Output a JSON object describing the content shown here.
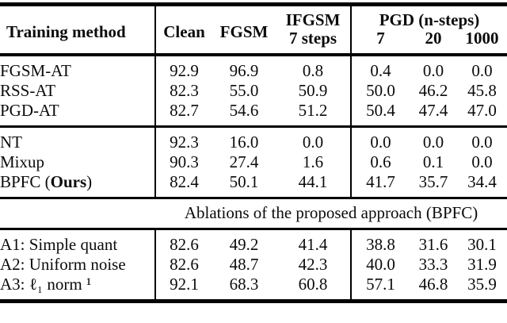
{
  "page": {
    "background_color": "#ffffff",
    "text_color": "#0b0b0b",
    "rule_color": "#000000"
  },
  "table": {
    "header": {
      "training_method": "Training method",
      "clean": "Clean",
      "fgsm": "FGSM",
      "ifgsm_line1": "IFGSM",
      "ifgsm_line2": "7 steps",
      "pgd_group": "PGD (n-steps)",
      "pgd_steps": [
        "7",
        "20",
        "1000"
      ]
    },
    "columns_order": [
      "Clean",
      "FGSM",
      "IFGSM 7 steps",
      "PGD 7",
      "PGD 20",
      "PGD 1000"
    ],
    "sections": [
      {
        "name": "adversarial-training-baselines",
        "rows": [
          {
            "label": "FGSM-AT",
            "values": [
              "92.9",
              "96.9",
              "0.8",
              "0.4",
              "0.0",
              "0.0"
            ]
          },
          {
            "label": "RSS-AT",
            "values": [
              "82.3",
              "55.0",
              "50.9",
              "50.0",
              "46.2",
              "45.8"
            ]
          },
          {
            "label": "PGD-AT",
            "values": [
              "82.7",
              "54.6",
              "51.2",
              "50.4",
              "47.4",
              "47.0"
            ]
          }
        ]
      },
      {
        "name": "normal-training-and-ours",
        "rows": [
          {
            "label": "NT",
            "values": [
              "92.3",
              "16.0",
              "0.0",
              "0.0",
              "0.0",
              "0.0"
            ]
          },
          {
            "label": "Mixup",
            "values": [
              "90.3",
              "27.4",
              "1.6",
              "0.6",
              "0.1",
              "0.0"
            ]
          },
          {
            "label_parts": [
              {
                "text": "BPFC (",
                "bold": false
              },
              {
                "text": "Ours",
                "bold": true
              },
              {
                "text": ")",
                "bold": false
              }
            ],
            "values": [
              "82.4",
              "50.1",
              "44.1",
              "41.7",
              "35.7",
              "34.4"
            ]
          }
        ]
      },
      {
        "name": "ablations",
        "rows": [
          {
            "label": "A1: Simple quant",
            "values": [
              "82.6",
              "49.2",
              "41.4",
              "38.8",
              "31.6",
              "30.1"
            ]
          },
          {
            "label": "A2: Uniform noise",
            "values": [
              "82.6",
              "48.7",
              "42.3",
              "40.0",
              "33.3",
              "31.9"
            ]
          },
          {
            "label": "A3: ℓ₁ norm ¹",
            "values": [
              "92.1",
              "68.3",
              "60.8",
              "57.1",
              "46.8",
              "35.9"
            ]
          }
        ]
      }
    ],
    "ablation_heading": "Ablations of the proposed approach (BPFC)"
  }
}
